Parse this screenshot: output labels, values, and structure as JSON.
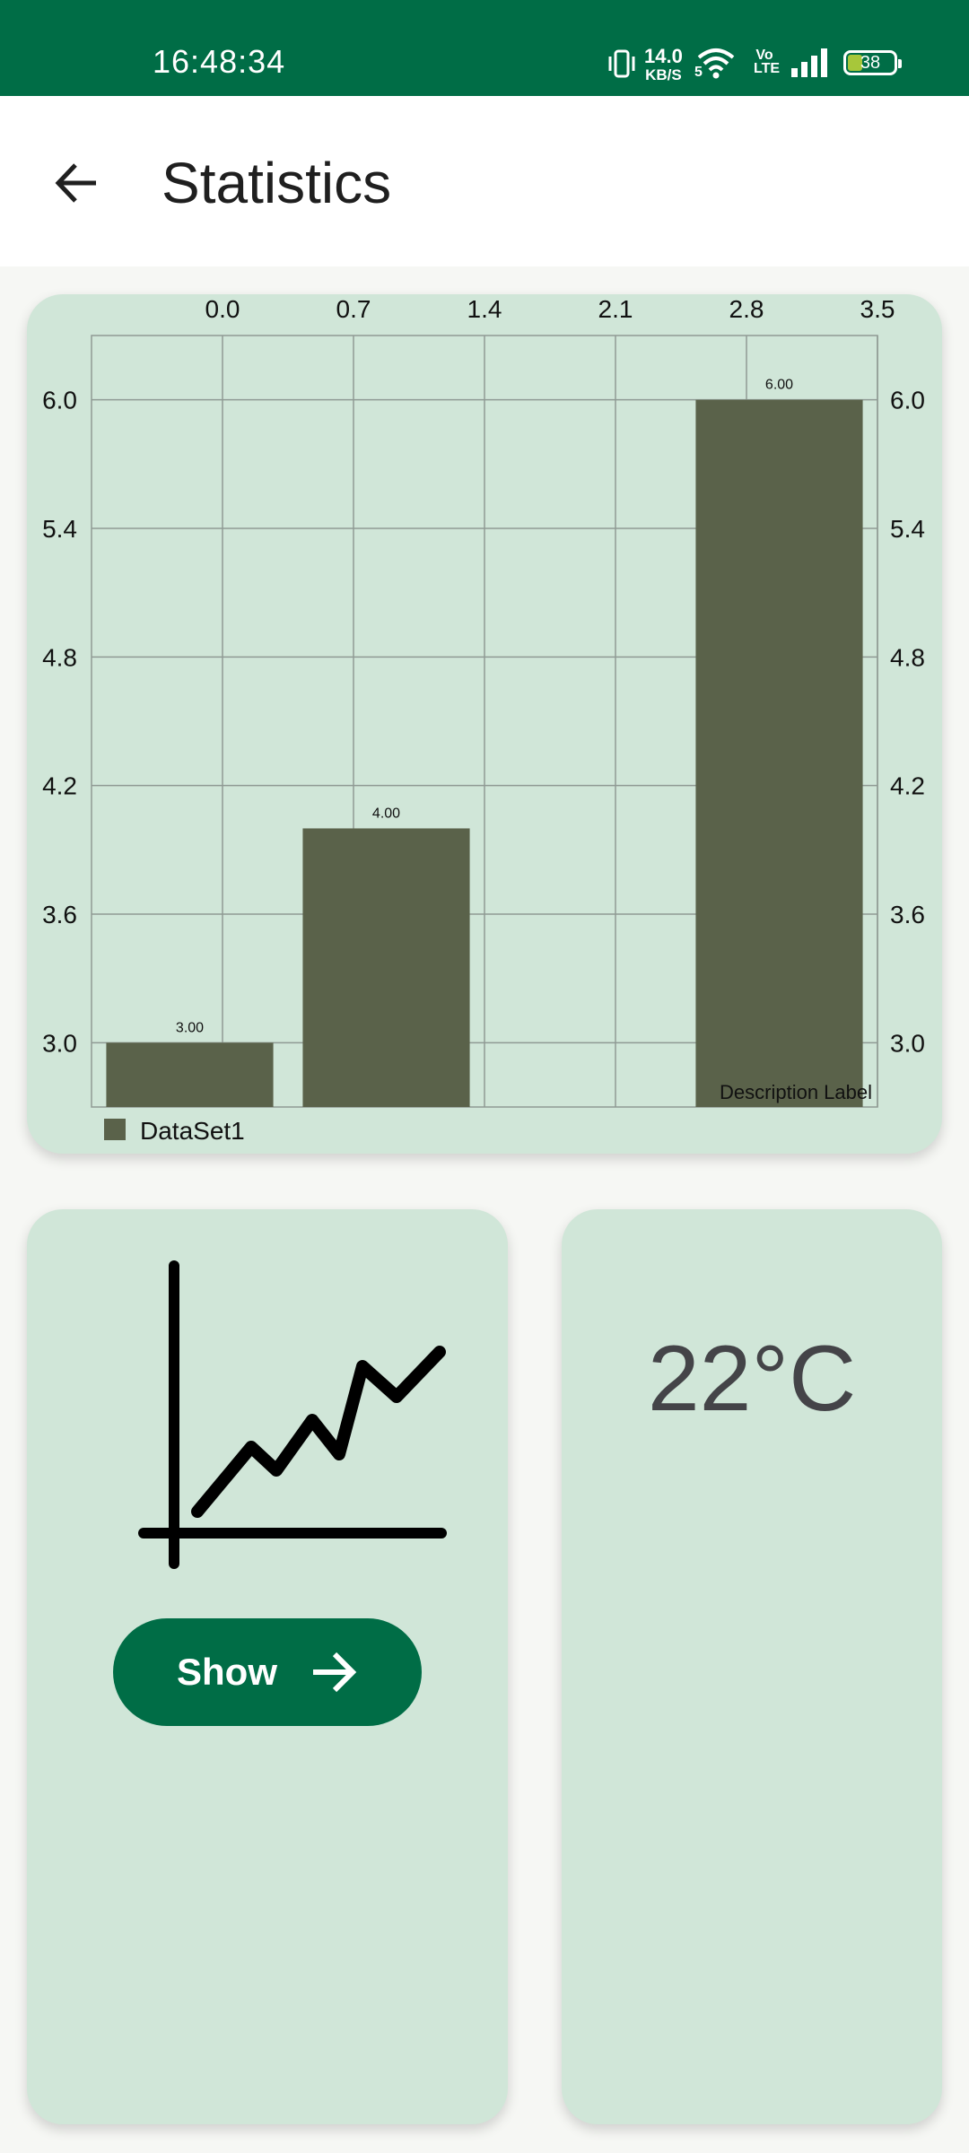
{
  "status_bar": {
    "time": "16:48:34",
    "net_speed_value": "14.0",
    "net_speed_unit": "KB/S",
    "wifi_badge": "5",
    "volte": "Vo LTE",
    "battery": "38",
    "icons": [
      "vibrate-icon",
      "wifi-icon",
      "volte-icon",
      "signal-icon",
      "battery-icon"
    ]
  },
  "app_bar": {
    "title": "Statistics",
    "back_icon": "arrow-left-icon"
  },
  "chart_data": {
    "type": "bar",
    "title": "",
    "x_tick_labels": [
      "0.0",
      "0.7",
      "1.4",
      "2.1",
      "2.8",
      "3.5"
    ],
    "xlim": [
      -0.5,
      3.5
    ],
    "ylim": [
      2.7,
      6.3
    ],
    "y_ticks": [
      3.0,
      3.6,
      4.2,
      4.8,
      5.4,
      6.0
    ],
    "y_tick_labels": [
      "3.0",
      "3.6",
      "4.2",
      "4.8",
      "5.4",
      "6.0"
    ],
    "bars": [
      {
        "x": 0.0,
        "value": 3.0,
        "label": "3.00"
      },
      {
        "x": 1.0,
        "value": 4.0,
        "label": "4.00"
      },
      {
        "x": 3.0,
        "value": 6.0,
        "label": "6.00"
      }
    ],
    "series": [
      {
        "name": "DataSet1"
      }
    ],
    "bar_color": "#5a624a",
    "description": "Description Label",
    "grid": true,
    "legend_position": "bottom-left"
  },
  "left_card": {
    "icon": "line-chart-icon",
    "button_label": "Show",
    "button_icon": "arrow-right-icon"
  },
  "right_card": {
    "temperature": "22°C"
  },
  "colors": {
    "primary": "#006d46",
    "card_background": "#d0e6d8",
    "bar": "#5a624a"
  }
}
